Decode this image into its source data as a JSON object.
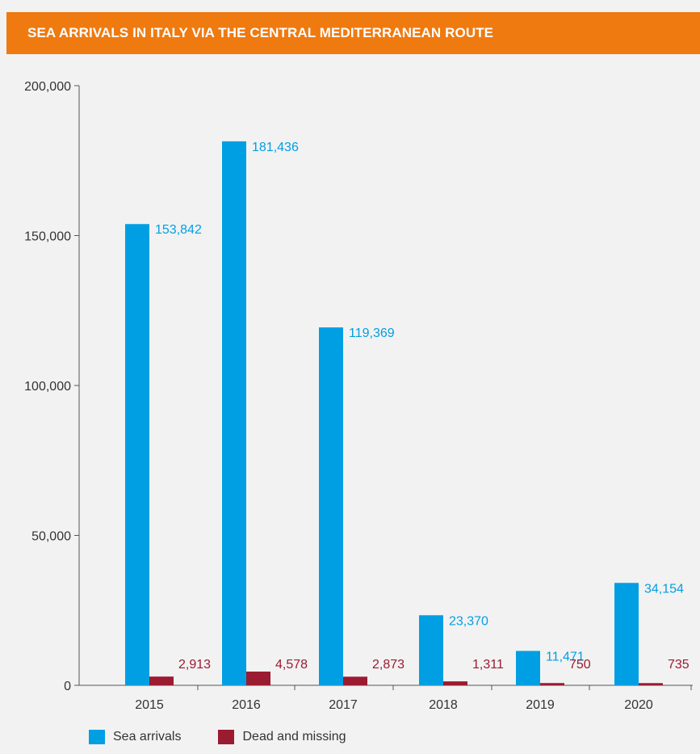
{
  "header": {
    "title": "SEA ARRIVALS IN ITALY VIA THE CENTRAL MEDITERRANEAN ROUTE"
  },
  "colors": {
    "header_bg": "#ef7a10",
    "sea_arrivals": "#009fe3",
    "dead_missing": "#9b1b30",
    "background": "#f2f2f2"
  },
  "chart_data": {
    "type": "bar",
    "title": "SEA ARRIVALS IN ITALY VIA THE CENTRAL MEDITERRANEAN ROUTE",
    "categories": [
      "2015",
      "2016",
      "2017",
      "2018",
      "2019",
      "2020"
    ],
    "series": [
      {
        "name": "Sea arrivals",
        "values": [
          153842,
          181436,
          119369,
          23370,
          11471,
          34154
        ],
        "labels": [
          "153,842",
          "181,436",
          "119,369",
          "23,370",
          "11,471",
          "34,154"
        ]
      },
      {
        "name": "Dead and missing",
        "values": [
          2913,
          4578,
          2873,
          1311,
          750,
          735
        ],
        "labels": [
          "2,913",
          "4,578",
          "2,873",
          "1,311",
          "750",
          "735"
        ]
      }
    ],
    "ylim": [
      0,
      200000
    ],
    "yticks": [
      0,
      50000,
      100000,
      150000,
      200000
    ],
    "ytick_labels": [
      "0",
      "50,000",
      "100,000",
      "150,000",
      "200,000"
    ],
    "legend": [
      "Sea arrivals",
      "Dead and missing"
    ],
    "legend_position": "bottom-left",
    "grid": false
  }
}
